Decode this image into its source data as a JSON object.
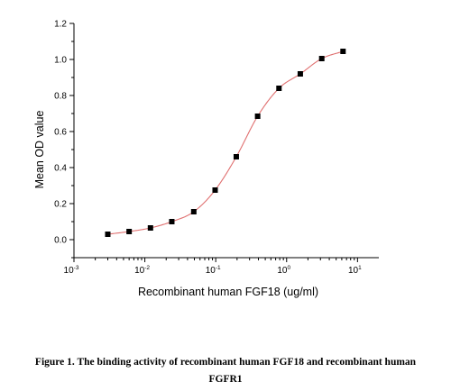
{
  "chart_data": {
    "type": "scatter",
    "title": "",
    "xlabel": "Recombinant human FGF18 (ug/ml)",
    "ylabel": "Mean OD value",
    "xscale": "log",
    "xlim": [
      0.001,
      20
    ],
    "ylim": [
      -0.1,
      1.2
    ],
    "x_ticks": [
      {
        "base": "10",
        "exp": "-3",
        "value": 0.001
      },
      {
        "base": "10",
        "exp": "-2",
        "value": 0.01
      },
      {
        "base": "10",
        "exp": "-1",
        "value": 0.1
      },
      {
        "base": "10",
        "exp": "0",
        "value": 1
      },
      {
        "base": "10",
        "exp": "1",
        "value": 10
      }
    ],
    "y_ticks": [
      "0.0",
      "0.2",
      "0.4",
      "0.6",
      "0.8",
      "1.0",
      "1.2"
    ],
    "grid": false,
    "legend": "none",
    "marker_color": "#000000",
    "fit_line_color": "#e07070",
    "series": [
      {
        "x": [
          0.003,
          0.006,
          0.012,
          0.024,
          0.049,
          0.098,
          0.195,
          0.39,
          0.78,
          1.56,
          3.13,
          6.25
        ],
        "y": [
          0.03,
          0.045,
          0.065,
          0.1,
          0.155,
          0.275,
          0.46,
          0.685,
          0.84,
          0.92,
          1.005,
          1.045
        ]
      }
    ]
  },
  "caption": {
    "line1": "Figure 1. The binding activity of recombinant human FGF18 and recombinant human",
    "line2": "FGFR1"
  }
}
